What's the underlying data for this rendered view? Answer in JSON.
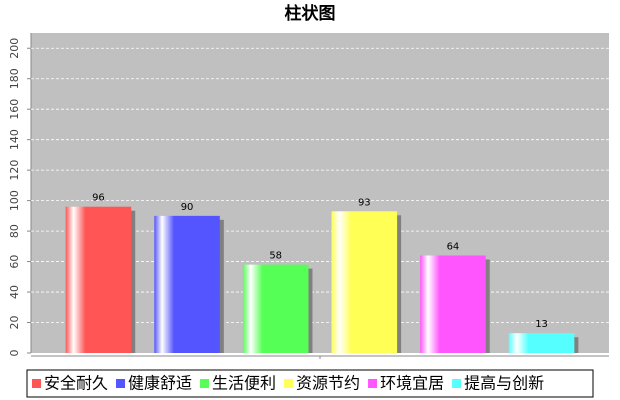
{
  "chart_data": {
    "type": "bar",
    "title": "柱状图",
    "categories": [
      null
    ],
    "series": [
      {
        "name": "安全耐久",
        "color": "#ff5555",
        "values": [
          96
        ]
      },
      {
        "name": "健康舒适",
        "color": "#5555ff",
        "values": [
          90
        ]
      },
      {
        "name": "生活便利",
        "color": "#55ff55",
        "values": [
          58
        ]
      },
      {
        "name": "资源节约",
        "color": "#ffff55",
        "values": [
          93
        ]
      },
      {
        "name": "环境宜居",
        "color": "#ff55ff",
        "values": [
          64
        ]
      },
      {
        "name": "提高与创新",
        "color": "#55ffff",
        "values": [
          13
        ]
      }
    ],
    "ylim": [
      0,
      210
    ],
    "yticks": [
      0,
      20,
      40,
      60,
      80,
      100,
      120,
      140,
      160,
      180,
      200
    ],
    "grid": true,
    "legend": "bottom"
  }
}
